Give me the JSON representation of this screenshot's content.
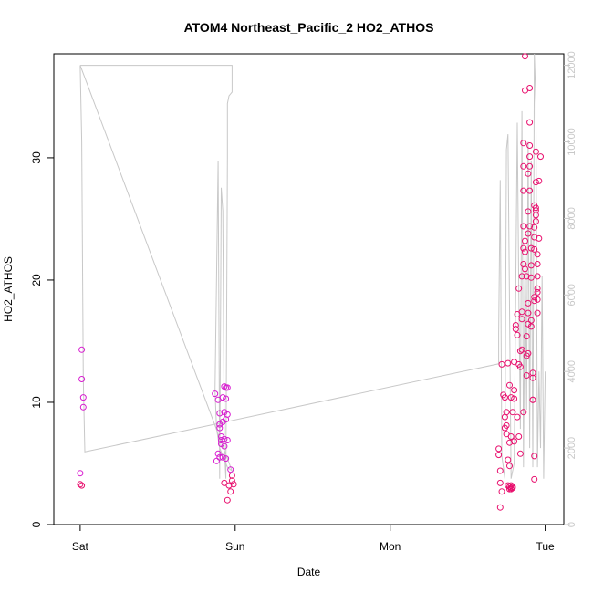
{
  "chart_data": {
    "type": "scatter",
    "title": "ATOM4 Northeast_Pacific_2 HO2_ATHOS",
    "xlabel": "Date",
    "ylabel": "HO2_ATHOS",
    "x_ticks": [
      {
        "day": 0,
        "label": "Sat"
      },
      {
        "day": 1,
        "label": "Sun"
      },
      {
        "day": 2,
        "label": "Mon"
      },
      {
        "day": 3,
        "label": "Tue"
      }
    ],
    "xlim_days": [
      -0.17,
      3.12
    ],
    "ylim": [
      0,
      38.5
    ],
    "y_ticks": [
      0,
      10,
      20,
      30
    ],
    "y2lim": [
      0,
      12300
    ],
    "y2_ticks": [
      0,
      2000,
      4000,
      6000,
      8000,
      10000,
      12000
    ],
    "colors": {
      "points": "#e8106e",
      "points_alt": "#d81bd0",
      "altitude_line": "#c8c8c8",
      "axis": "#000000",
      "axis_right": "#c8c8c8"
    },
    "series": [
      {
        "kind": "points",
        "axis": "left",
        "points": [
          [
            0.01,
            14.3
          ],
          [
            0.01,
            11.9
          ],
          [
            0.02,
            10.4
          ],
          [
            0.02,
            9.6
          ],
          [
            0.0,
            4.2
          ],
          [
            0.0,
            3.3
          ],
          [
            0.01,
            3.2
          ],
          [
            0.87,
            10.7
          ],
          [
            0.89,
            10.2
          ],
          [
            0.9,
            9.1
          ],
          [
            0.9,
            8.2
          ],
          [
            0.9,
            7.9
          ],
          [
            0.91,
            7.2
          ],
          [
            0.91,
            6.9
          ],
          [
            0.89,
            5.8
          ],
          [
            0.9,
            5.5
          ],
          [
            0.88,
            5.2
          ],
          [
            0.93,
            11.3
          ],
          [
            0.94,
            11.2
          ],
          [
            0.95,
            11.2
          ],
          [
            0.92,
            10.4
          ],
          [
            0.94,
            10.3
          ],
          [
            0.93,
            9.2
          ],
          [
            0.95,
            9.0
          ],
          [
            0.94,
            8.6
          ],
          [
            0.92,
            8.4
          ],
          [
            0.93,
            7.0
          ],
          [
            0.95,
            6.9
          ],
          [
            0.91,
            6.6
          ],
          [
            0.93,
            6.4
          ],
          [
            0.92,
            5.5
          ],
          [
            0.94,
            5.4
          ],
          [
            0.97,
            4.5
          ],
          [
            0.98,
            4.0
          ],
          [
            0.98,
            3.6
          ],
          [
            0.99,
            3.3
          ],
          [
            0.96,
            3.2
          ],
          [
            0.93,
            3.4
          ],
          [
            0.97,
            2.7
          ],
          [
            0.95,
            2.0
          ],
          [
            2.7,
            6.2
          ],
          [
            2.7,
            5.7
          ],
          [
            2.71,
            4.4
          ],
          [
            2.71,
            3.4
          ],
          [
            2.72,
            2.7
          ],
          [
            2.71,
            1.4
          ],
          [
            2.72,
            13.1
          ],
          [
            2.73,
            10.6
          ],
          [
            2.74,
            10.4
          ],
          [
            2.75,
            9.2
          ],
          [
            2.74,
            8.8
          ],
          [
            2.75,
            8.1
          ],
          [
            2.74,
            7.9
          ],
          [
            2.75,
            7.4
          ],
          [
            2.76,
            5.3
          ],
          [
            2.77,
            4.8
          ],
          [
            2.76,
            13.2
          ],
          [
            2.77,
            11.4
          ],
          [
            2.78,
            10.4
          ],
          [
            2.79,
            9.2
          ],
          [
            2.78,
            7.2
          ],
          [
            2.77,
            6.7
          ],
          [
            2.8,
            11.0
          ],
          [
            2.8,
            10.3
          ],
          [
            2.8,
            6.8
          ],
          [
            2.76,
            3.2
          ],
          [
            2.77,
            3.1
          ],
          [
            2.78,
            3.0
          ],
          [
            2.79,
            3.0
          ],
          [
            2.78,
            2.9
          ],
          [
            2.77,
            2.9
          ],
          [
            2.79,
            3.1
          ],
          [
            2.78,
            3.2
          ],
          [
            2.8,
            13.3
          ],
          [
            2.81,
            16.3
          ],
          [
            2.81,
            16.0
          ],
          [
            2.82,
            15.5
          ],
          [
            2.82,
            17.2
          ],
          [
            2.83,
            19.3
          ],
          [
            2.83,
            13.1
          ],
          [
            2.84,
            12.9
          ],
          [
            2.84,
            14.2
          ],
          [
            2.85,
            14.3
          ],
          [
            2.85,
            16.8
          ],
          [
            2.85,
            17.4
          ],
          [
            2.85,
            20.3
          ],
          [
            2.86,
            21.3
          ],
          [
            2.86,
            22.6
          ],
          [
            2.86,
            24.4
          ],
          [
            2.86,
            27.3
          ],
          [
            2.86,
            29.3
          ],
          [
            2.86,
            31.2
          ],
          [
            2.87,
            38.3
          ],
          [
            2.87,
            35.5
          ],
          [
            2.87,
            22.3
          ],
          [
            2.87,
            23.2
          ],
          [
            2.87,
            20.9
          ],
          [
            2.88,
            15.4
          ],
          [
            2.88,
            13.8
          ],
          [
            2.88,
            12.2
          ],
          [
            2.88,
            20.3
          ],
          [
            2.89,
            14.0
          ],
          [
            2.89,
            16.4
          ],
          [
            2.89,
            17.3
          ],
          [
            2.89,
            18.1
          ],
          [
            2.89,
            23.8
          ],
          [
            2.89,
            25.6
          ],
          [
            2.89,
            28.7
          ],
          [
            2.9,
            35.7
          ],
          [
            2.9,
            32.9
          ],
          [
            2.9,
            31.0
          ],
          [
            2.9,
            30.1
          ],
          [
            2.9,
            29.3
          ],
          [
            2.9,
            27.3
          ],
          [
            2.9,
            24.4
          ],
          [
            2.91,
            22.6
          ],
          [
            2.91,
            21.2
          ],
          [
            2.91,
            20.2
          ],
          [
            2.91,
            16.7
          ],
          [
            2.91,
            16.2
          ],
          [
            2.92,
            12.4
          ],
          [
            2.92,
            12.0
          ],
          [
            2.92,
            10.2
          ],
          [
            2.92,
            10.2
          ],
          [
            2.93,
            26.1
          ],
          [
            2.93,
            24.3
          ],
          [
            2.93,
            23.5
          ],
          [
            2.93,
            22.5
          ],
          [
            2.93,
            18.6
          ],
          [
            2.93,
            18.3
          ],
          [
            2.93,
            5.6
          ],
          [
            2.93,
            3.7
          ],
          [
            2.94,
            30.5
          ],
          [
            2.94,
            28.0
          ],
          [
            2.94,
            25.9
          ],
          [
            2.94,
            25.7
          ],
          [
            2.94,
            25.3
          ],
          [
            2.94,
            24.8
          ],
          [
            2.95,
            22.1
          ],
          [
            2.95,
            21.3
          ],
          [
            2.95,
            20.3
          ],
          [
            2.95,
            19.3
          ],
          [
            2.95,
            19.0
          ],
          [
            2.95,
            18.4
          ],
          [
            2.95,
            17.3
          ],
          [
            2.96,
            23.4
          ],
          [
            2.96,
            28.1
          ],
          [
            2.97,
            30.1
          ],
          [
            2.86,
            9.2
          ],
          [
            2.83,
            7.2
          ],
          [
            2.82,
            8.8
          ],
          [
            2.84,
            5.8
          ]
        ]
      },
      {
        "kind": "line",
        "axis": "right",
        "points": [
          [
            0.0,
            12000
          ],
          [
            0.98,
            12000
          ],
          [
            0.98,
            11300
          ],
          [
            0.96,
            11200
          ],
          [
            0.95,
            11000
          ],
          [
            0.95,
            9800
          ],
          [
            0.95,
            9600
          ],
          [
            0.94,
            1200
          ],
          [
            0.93,
            2000
          ],
          [
            0.92,
            8200
          ],
          [
            0.91,
            8800
          ],
          [
            0.9,
            1200
          ],
          [
            0.89,
            9500
          ],
          [
            0.87,
            3500
          ],
          [
            0.88,
            2500
          ],
          [
            0.9,
            2000
          ],
          [
            0.95,
            1500
          ],
          [
            0.98,
            1400
          ],
          [
            0.0,
            12000
          ],
          [
            0.01,
            10000
          ],
          [
            0.02,
            3800
          ],
          [
            0.03,
            1900
          ],
          [
            2.7,
            4200
          ],
          [
            2.7,
            5000
          ],
          [
            2.71,
            9000
          ],
          [
            2.72,
            1800
          ],
          [
            2.74,
            1200
          ],
          [
            2.75,
            9800
          ],
          [
            2.76,
            10200
          ],
          [
            2.78,
            1200
          ],
          [
            2.8,
            1600
          ],
          [
            2.82,
            10500
          ],
          [
            2.83,
            6000
          ],
          [
            2.84,
            2500
          ],
          [
            2.85,
            10800
          ],
          [
            2.86,
            1500
          ],
          [
            2.87,
            7500
          ],
          [
            2.88,
            3000
          ],
          [
            2.89,
            10000
          ],
          [
            2.9,
            2000
          ],
          [
            2.91,
            9500
          ],
          [
            2.92,
            1500
          ],
          [
            2.93,
            12300
          ],
          [
            2.94,
            11000
          ],
          [
            2.95,
            1500
          ],
          [
            2.96,
            4000
          ],
          [
            2.97,
            2000
          ],
          [
            2.98,
            6500
          ],
          [
            2.99,
            1200
          ],
          [
            3.0,
            4000
          ]
        ]
      }
    ]
  }
}
